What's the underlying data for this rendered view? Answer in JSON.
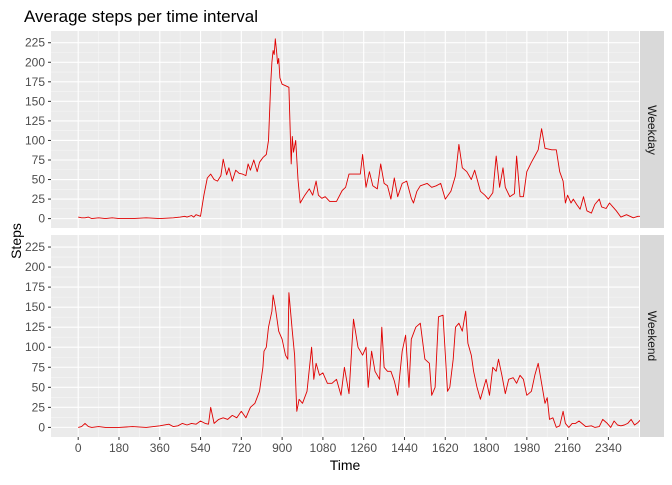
{
  "chart_data": {
    "type": "line",
    "title": "Average steps per time interval",
    "xlabel": "Time",
    "ylabel": "Steps",
    "xlim": [
      -120,
      2475
    ],
    "ylim": [
      -12,
      240
    ],
    "x_ticks": [
      0,
      180,
      360,
      540,
      720,
      900,
      1080,
      1260,
      1440,
      1620,
      1800,
      1980,
      2160,
      2340
    ],
    "y_ticks": [
      0,
      25,
      50,
      75,
      100,
      125,
      150,
      175,
      200,
      225
    ],
    "grid": true,
    "line_color": "#e00000",
    "panels": [
      {
        "name": "Weekday",
        "points": [
          [
            0,
            2
          ],
          [
            15,
            1
          ],
          [
            30,
            1
          ],
          [
            45,
            2
          ],
          [
            60,
            0
          ],
          [
            90,
            1
          ],
          [
            120,
            0
          ],
          [
            150,
            1
          ],
          [
            180,
            0
          ],
          [
            240,
            0
          ],
          [
            300,
            1
          ],
          [
            360,
            0
          ],
          [
            420,
            1
          ],
          [
            450,
            2
          ],
          [
            470,
            3
          ],
          [
            480,
            2
          ],
          [
            500,
            4
          ],
          [
            510,
            2
          ],
          [
            520,
            5
          ],
          [
            540,
            3
          ],
          [
            555,
            30
          ],
          [
            570,
            52
          ],
          [
            585,
            57
          ],
          [
            600,
            50
          ],
          [
            615,
            48
          ],
          [
            630,
            55
          ],
          [
            640,
            76
          ],
          [
            655,
            56
          ],
          [
            665,
            65
          ],
          [
            680,
            48
          ],
          [
            695,
            62
          ],
          [
            710,
            58
          ],
          [
            725,
            57
          ],
          [
            740,
            55
          ],
          [
            750,
            70
          ],
          [
            760,
            62
          ],
          [
            775,
            75
          ],
          [
            790,
            60
          ],
          [
            800,
            72
          ],
          [
            815,
            78
          ],
          [
            830,
            82
          ],
          [
            840,
            100
          ],
          [
            850,
            175
          ],
          [
            855,
            200
          ],
          [
            860,
            215
          ],
          [
            865,
            210
          ],
          [
            870,
            230
          ],
          [
            875,
            215
          ],
          [
            880,
            198
          ],
          [
            885,
            205
          ],
          [
            890,
            180
          ],
          [
            900,
            172
          ],
          [
            915,
            170
          ],
          [
            930,
            168
          ],
          [
            940,
            70
          ],
          [
            945,
            105
          ],
          [
            950,
            85
          ],
          [
            960,
            100
          ],
          [
            970,
            50
          ],
          [
            980,
            20
          ],
          [
            1000,
            30
          ],
          [
            1020,
            38
          ],
          [
            1035,
            30
          ],
          [
            1050,
            48
          ],
          [
            1060,
            30
          ],
          [
            1075,
            26
          ],
          [
            1090,
            28
          ],
          [
            1110,
            22
          ],
          [
            1140,
            22
          ],
          [
            1165,
            36
          ],
          [
            1180,
            40
          ],
          [
            1195,
            57
          ],
          [
            1220,
            57
          ],
          [
            1245,
            57
          ],
          [
            1255,
            82
          ],
          [
            1270,
            40
          ],
          [
            1285,
            60
          ],
          [
            1300,
            42
          ],
          [
            1320,
            38
          ],
          [
            1335,
            70
          ],
          [
            1350,
            45
          ],
          [
            1365,
            42
          ],
          [
            1380,
            25
          ],
          [
            1395,
            52
          ],
          [
            1410,
            28
          ],
          [
            1430,
            45
          ],
          [
            1450,
            48
          ],
          [
            1470,
            26
          ],
          [
            1480,
            20
          ],
          [
            1495,
            35
          ],
          [
            1510,
            42
          ],
          [
            1540,
            45
          ],
          [
            1560,
            40
          ],
          [
            1580,
            42
          ],
          [
            1600,
            45
          ],
          [
            1620,
            25
          ],
          [
            1645,
            35
          ],
          [
            1665,
            55
          ],
          [
            1680,
            95
          ],
          [
            1695,
            65
          ],
          [
            1715,
            60
          ],
          [
            1735,
            50
          ],
          [
            1750,
            62
          ],
          [
            1775,
            35
          ],
          [
            1795,
            30
          ],
          [
            1810,
            25
          ],
          [
            1830,
            33
          ],
          [
            1845,
            80
          ],
          [
            1860,
            40
          ],
          [
            1875,
            65
          ],
          [
            1885,
            40
          ],
          [
            1905,
            28
          ],
          [
            1925,
            32
          ],
          [
            1935,
            80
          ],
          [
            1950,
            28
          ],
          [
            1965,
            28
          ],
          [
            1980,
            60
          ],
          [
            2000,
            72
          ],
          [
            2015,
            80
          ],
          [
            2030,
            88
          ],
          [
            2045,
            115
          ],
          [
            2060,
            90
          ],
          [
            2090,
            88
          ],
          [
            2110,
            88
          ],
          [
            2125,
            60
          ],
          [
            2140,
            48
          ],
          [
            2150,
            20
          ],
          [
            2160,
            30
          ],
          [
            2175,
            20
          ],
          [
            2185,
            25
          ],
          [
            2200,
            18
          ],
          [
            2215,
            12
          ],
          [
            2230,
            28
          ],
          [
            2245,
            10
          ],
          [
            2265,
            7
          ],
          [
            2280,
            18
          ],
          [
            2300,
            25
          ],
          [
            2310,
            15
          ],
          [
            2330,
            13
          ],
          [
            2345,
            20
          ],
          [
            2360,
            15
          ],
          [
            2375,
            10
          ],
          [
            2395,
            2
          ],
          [
            2420,
            5
          ],
          [
            2450,
            1
          ],
          [
            2470,
            3
          ],
          [
            2490,
            3
          ],
          [
            2520,
            0
          ]
        ]
      },
      {
        "name": "Weekend",
        "points": [
          [
            0,
            0
          ],
          [
            15,
            1
          ],
          [
            30,
            5
          ],
          [
            45,
            1
          ],
          [
            60,
            0
          ],
          [
            90,
            1
          ],
          [
            120,
            0
          ],
          [
            180,
            0
          ],
          [
            240,
            1
          ],
          [
            300,
            0
          ],
          [
            360,
            2
          ],
          [
            400,
            4
          ],
          [
            420,
            1
          ],
          [
            440,
            2
          ],
          [
            460,
            5
          ],
          [
            480,
            3
          ],
          [
            500,
            5
          ],
          [
            520,
            4
          ],
          [
            540,
            8
          ],
          [
            560,
            5
          ],
          [
            575,
            4
          ],
          [
            585,
            25
          ],
          [
            600,
            5
          ],
          [
            620,
            10
          ],
          [
            640,
            12
          ],
          [
            660,
            10
          ],
          [
            680,
            15
          ],
          [
            700,
            12
          ],
          [
            720,
            20
          ],
          [
            740,
            12
          ],
          [
            760,
            25
          ],
          [
            780,
            30
          ],
          [
            800,
            45
          ],
          [
            815,
            75
          ],
          [
            820,
            95
          ],
          [
            830,
            100
          ],
          [
            840,
            125
          ],
          [
            855,
            145
          ],
          [
            860,
            165
          ],
          [
            870,
            150
          ],
          [
            885,
            120
          ],
          [
            900,
            110
          ],
          [
            915,
            90
          ],
          [
            925,
            85
          ],
          [
            930,
            168
          ],
          [
            945,
            120
          ],
          [
            955,
            90
          ],
          [
            965,
            20
          ],
          [
            975,
            35
          ],
          [
            990,
            30
          ],
          [
            1010,
            45
          ],
          [
            1030,
            100
          ],
          [
            1040,
            60
          ],
          [
            1050,
            80
          ],
          [
            1065,
            65
          ],
          [
            1080,
            68
          ],
          [
            1100,
            55
          ],
          [
            1120,
            55
          ],
          [
            1140,
            60
          ],
          [
            1160,
            40
          ],
          [
            1175,
            75
          ],
          [
            1195,
            42
          ],
          [
            1215,
            135
          ],
          [
            1235,
            100
          ],
          [
            1255,
            90
          ],
          [
            1270,
            100
          ],
          [
            1280,
            50
          ],
          [
            1295,
            95
          ],
          [
            1310,
            70
          ],
          [
            1330,
            60
          ],
          [
            1340,
            125
          ],
          [
            1350,
            75
          ],
          [
            1365,
            70
          ],
          [
            1380,
            70
          ],
          [
            1395,
            58
          ],
          [
            1410,
            40
          ],
          [
            1430,
            95
          ],
          [
            1445,
            115
          ],
          [
            1460,
            50
          ],
          [
            1470,
            110
          ],
          [
            1490,
            125
          ],
          [
            1510,
            130
          ],
          [
            1530,
            85
          ],
          [
            1550,
            80
          ],
          [
            1560,
            40
          ],
          [
            1575,
            50
          ],
          [
            1590,
            138
          ],
          [
            1610,
            140
          ],
          [
            1630,
            45
          ],
          [
            1640,
            50
          ],
          [
            1655,
            85
          ],
          [
            1665,
            125
          ],
          [
            1680,
            130
          ],
          [
            1695,
            120
          ],
          [
            1710,
            145
          ],
          [
            1720,
            105
          ],
          [
            1735,
            90
          ],
          [
            1745,
            70
          ],
          [
            1760,
            50
          ],
          [
            1775,
            35
          ],
          [
            1790,
            50
          ],
          [
            1800,
            60
          ],
          [
            1815,
            40
          ],
          [
            1830,
            75
          ],
          [
            1845,
            70
          ],
          [
            1855,
            85
          ],
          [
            1870,
            65
          ],
          [
            1885,
            42
          ],
          [
            1900,
            60
          ],
          [
            1920,
            62
          ],
          [
            1935,
            55
          ],
          [
            1950,
            65
          ],
          [
            1965,
            60
          ],
          [
            1980,
            40
          ],
          [
            2000,
            45
          ],
          [
            2015,
            65
          ],
          [
            2030,
            80
          ],
          [
            2045,
            55
          ],
          [
            2060,
            30
          ],
          [
            2070,
            37
          ],
          [
            2080,
            10
          ],
          [
            2095,
            12
          ],
          [
            2110,
            0
          ],
          [
            2125,
            2
          ],
          [
            2140,
            20
          ],
          [
            2150,
            5
          ],
          [
            2165,
            0
          ],
          [
            2180,
            5
          ],
          [
            2195,
            5
          ],
          [
            2210,
            8
          ],
          [
            2240,
            1
          ],
          [
            2265,
            2
          ],
          [
            2280,
            0
          ],
          [
            2300,
            1
          ],
          [
            2315,
            10
          ],
          [
            2335,
            5
          ],
          [
            2350,
            0
          ],
          [
            2365,
            8
          ],
          [
            2380,
            3
          ],
          [
            2395,
            2
          ],
          [
            2410,
            3
          ],
          [
            2425,
            5
          ],
          [
            2440,
            10
          ],
          [
            2455,
            3
          ],
          [
            2470,
            6
          ],
          [
            2490,
            12
          ],
          [
            2500,
            10
          ],
          [
            2510,
            5
          ],
          [
            2525,
            0
          ]
        ]
      }
    ]
  }
}
